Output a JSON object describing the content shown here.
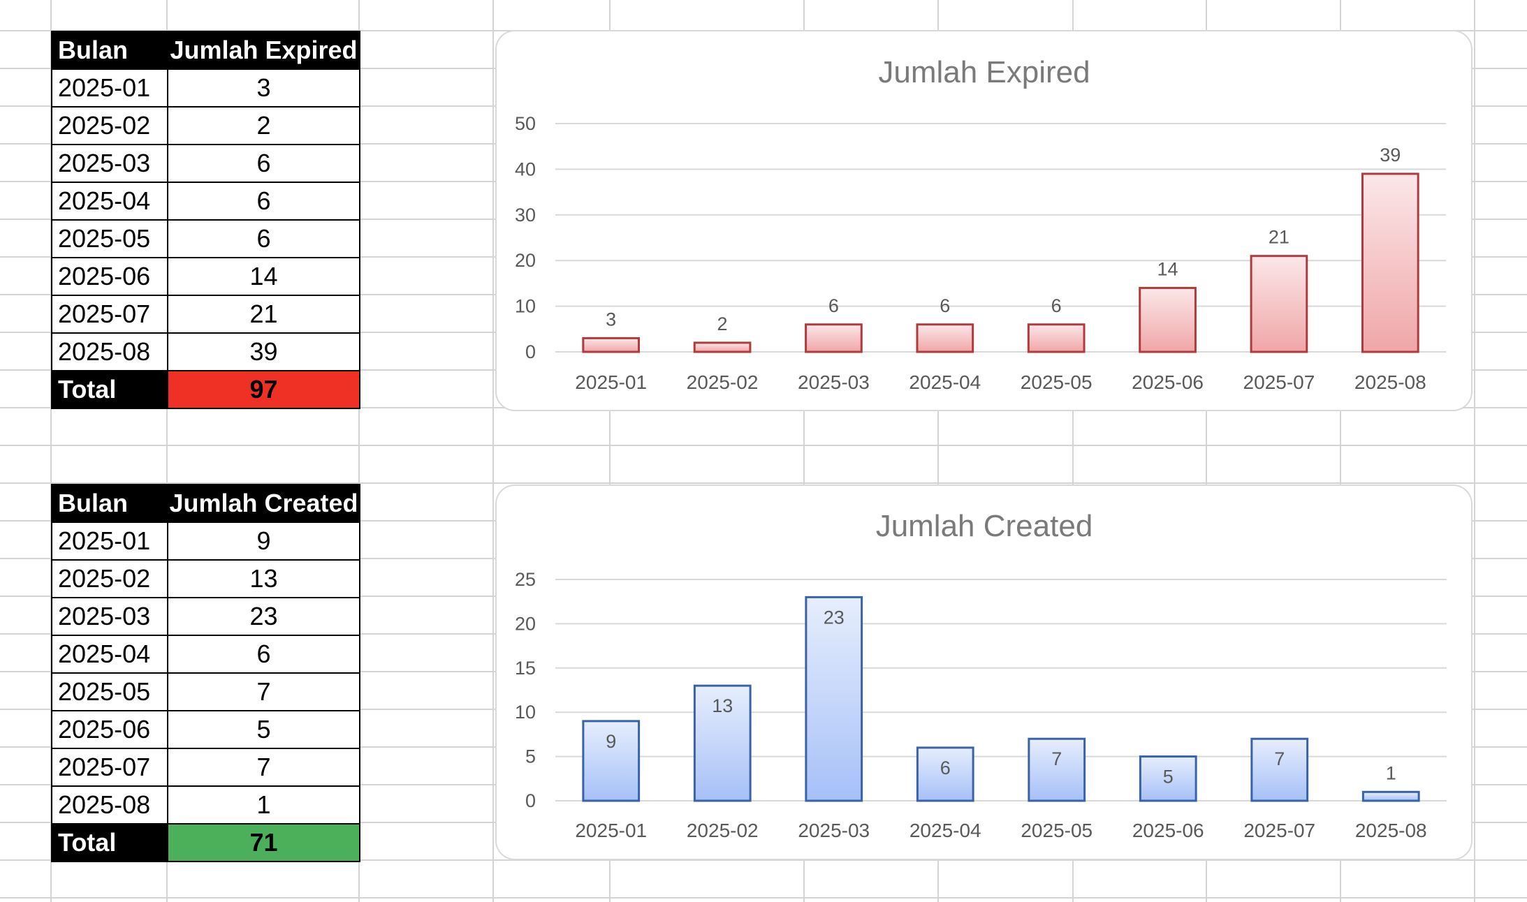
{
  "tables": {
    "expired": {
      "header": [
        "Bulan",
        "Jumlah Expired"
      ],
      "rows": [
        [
          "2025-01",
          "3"
        ],
        [
          "2025-02",
          "2"
        ],
        [
          "2025-03",
          "6"
        ],
        [
          "2025-04",
          "6"
        ],
        [
          "2025-05",
          "6"
        ],
        [
          "2025-06",
          "14"
        ],
        [
          "2025-07",
          "21"
        ],
        [
          "2025-08",
          "39"
        ]
      ],
      "total_label": "Total",
      "total_value": "97",
      "total_color": "#ee3124"
    },
    "created": {
      "header": [
        "Bulan",
        "Jumlah Created"
      ],
      "rows": [
        [
          "2025-01",
          "9"
        ],
        [
          "2025-02",
          "13"
        ],
        [
          "2025-03",
          "23"
        ],
        [
          "2025-04",
          "6"
        ],
        [
          "2025-05",
          "7"
        ],
        [
          "2025-06",
          "5"
        ],
        [
          "2025-07",
          "7"
        ],
        [
          "2025-08",
          "1"
        ]
      ],
      "total_label": "Total",
      "total_value": "71",
      "total_color": "#4caf5a"
    }
  },
  "chart_data": [
    {
      "type": "bar",
      "title": "Jumlah Expired",
      "categories": [
        "2025-01",
        "2025-02",
        "2025-03",
        "2025-04",
        "2025-05",
        "2025-06",
        "2025-07",
        "2025-08"
      ],
      "values": [
        3,
        2,
        6,
        6,
        6,
        14,
        21,
        39
      ],
      "ylim": [
        0,
        50
      ],
      "yticks": [
        0,
        10,
        20,
        30,
        40,
        50
      ],
      "grid": true,
      "data_labels": "above",
      "colors": {
        "fill_top": "#fbe7e8",
        "fill_bottom": "#f0a6a8",
        "stroke": "#b03a3d"
      }
    },
    {
      "type": "bar",
      "title": "Jumlah Created",
      "categories": [
        "2025-01",
        "2025-02",
        "2025-03",
        "2025-04",
        "2025-05",
        "2025-06",
        "2025-07",
        "2025-08"
      ],
      "values": [
        9,
        13,
        23,
        6,
        7,
        5,
        7,
        1
      ],
      "ylim": [
        0,
        25
      ],
      "yticks": [
        0,
        5,
        10,
        15,
        20,
        25
      ],
      "grid": true,
      "data_labels": "inside",
      "colors": {
        "fill_top": "#e6eefd",
        "fill_bottom": "#a6c0f7",
        "stroke": "#3a62a8"
      }
    }
  ]
}
